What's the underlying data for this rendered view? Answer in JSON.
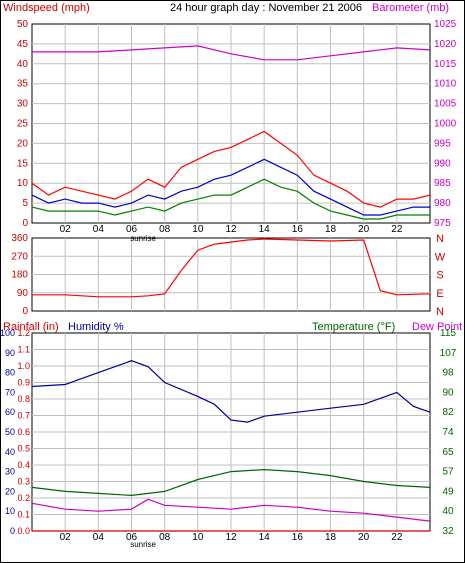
{
  "colors": {
    "wind": "#ff0000",
    "gust": "#ff0000",
    "avg": "#0000cc",
    "green": "#008000",
    "baro": "#cc00cc",
    "dir": "#ff0000",
    "hum": "#000099",
    "temp": "#006600",
    "dew": "#cc00cc",
    "rain": "#cc0000",
    "grid": "#c0c0c0"
  },
  "header": {
    "windspeed_label": "Windspeed (mph)",
    "title": "24 hour graph day : November 21 2006",
    "barometer_label": "Barometer (mb)"
  },
  "bottom_header": {
    "rainfall_label": "Rainfall (in)",
    "humidity_label": "Humidity %",
    "temperature_label": "Temperature (°F)",
    "dewpoint_label": "Dew Point"
  },
  "x_labels": [
    "02",
    "04",
    "06",
    "08",
    "10",
    "12",
    "14",
    "16",
    "18",
    "20",
    "22"
  ],
  "sunrise_label": "sunrise",
  "chart_data": [
    {
      "type": "line",
      "id": "wind",
      "ylim": [
        0,
        50
      ],
      "y_ticks": [
        0,
        5,
        10,
        15,
        20,
        25,
        30,
        35,
        40,
        45,
        50
      ],
      "y2lim": [
        975,
        1025
      ],
      "y2_ticks": [
        975,
        980,
        985,
        990,
        995,
        1000,
        1005,
        1010,
        1015,
        1020,
        1025
      ],
      "series": [
        {
          "key": "gust",
          "values": [
            [
              0,
              10
            ],
            [
              1,
              7
            ],
            [
              2,
              9
            ],
            [
              3,
              8
            ],
            [
              4,
              7
            ],
            [
              5,
              6
            ],
            [
              6,
              8
            ],
            [
              7,
              11
            ],
            [
              8,
              9
            ],
            [
              9,
              14
            ],
            [
              10,
              16
            ],
            [
              11,
              18
            ],
            [
              12,
              19
            ],
            [
              13,
              21
            ],
            [
              14,
              23
            ],
            [
              15,
              20
            ],
            [
              16,
              17
            ],
            [
              17,
              12
            ],
            [
              18,
              10
            ],
            [
              19,
              8
            ],
            [
              20,
              5
            ],
            [
              21,
              4
            ],
            [
              22,
              6
            ],
            [
              23,
              6
            ],
            [
              24,
              7
            ]
          ]
        },
        {
          "key": "avg",
          "values": [
            [
              0,
              7
            ],
            [
              1,
              5
            ],
            [
              2,
              6
            ],
            [
              3,
              5
            ],
            [
              4,
              5
            ],
            [
              5,
              4
            ],
            [
              6,
              5
            ],
            [
              7,
              7
            ],
            [
              8,
              6
            ],
            [
              9,
              8
            ],
            [
              10,
              9
            ],
            [
              11,
              11
            ],
            [
              12,
              12
            ],
            [
              13,
              14
            ],
            [
              14,
              16
            ],
            [
              15,
              14
            ],
            [
              16,
              12
            ],
            [
              17,
              8
            ],
            [
              18,
              6
            ],
            [
              19,
              4
            ],
            [
              20,
              2
            ],
            [
              21,
              2
            ],
            [
              22,
              3
            ],
            [
              23,
              4
            ],
            [
              24,
              4
            ]
          ]
        },
        {
          "key": "green",
          "values": [
            [
              0,
              4
            ],
            [
              1,
              3
            ],
            [
              2,
              3
            ],
            [
              3,
              3
            ],
            [
              4,
              3
            ],
            [
              5,
              2
            ],
            [
              6,
              3
            ],
            [
              7,
              4
            ],
            [
              8,
              3
            ],
            [
              9,
              5
            ],
            [
              10,
              6
            ],
            [
              11,
              7
            ],
            [
              12,
              7
            ],
            [
              13,
              9
            ],
            [
              14,
              11
            ],
            [
              15,
              9
            ],
            [
              16,
              8
            ],
            [
              17,
              5
            ],
            [
              18,
              3
            ],
            [
              19,
              2
            ],
            [
              20,
              1
            ],
            [
              21,
              1
            ],
            [
              22,
              2
            ],
            [
              23,
              2
            ],
            [
              24,
              2
            ]
          ]
        },
        {
          "key": "baro",
          "axis": "y2",
          "values": [
            [
              0,
              1018
            ],
            [
              2,
              1018
            ],
            [
              4,
              1018
            ],
            [
              6,
              1018.5
            ],
            [
              8,
              1019
            ],
            [
              10,
              1019.5
            ],
            [
              12,
              1017.5
            ],
            [
              14,
              1016
            ],
            [
              16,
              1016
            ],
            [
              18,
              1017
            ],
            [
              20,
              1018
            ],
            [
              22,
              1019
            ],
            [
              24,
              1018.5
            ]
          ]
        }
      ]
    },
    {
      "type": "line",
      "id": "direction",
      "ylim": [
        0,
        360
      ],
      "y_ticks": [
        0,
        90,
        180,
        270,
        360
      ],
      "y2_labels": [
        "N",
        "W",
        "S",
        "E",
        "N"
      ],
      "series": [
        {
          "key": "dir",
          "values": [
            [
              0,
              80
            ],
            [
              2,
              80
            ],
            [
              4,
              70
            ],
            [
              6,
              70
            ],
            [
              7,
              75
            ],
            [
              8,
              85
            ],
            [
              9,
              200
            ],
            [
              10,
              300
            ],
            [
              11,
              330
            ],
            [
              12,
              340
            ],
            [
              13,
              350
            ],
            [
              14,
              355
            ],
            [
              16,
              350
            ],
            [
              18,
              345
            ],
            [
              20,
              350
            ],
            [
              21,
              100
            ],
            [
              22,
              80
            ],
            [
              24,
              85
            ]
          ]
        }
      ]
    },
    {
      "type": "line",
      "id": "climate",
      "ylim": [
        0,
        1.2
      ],
      "y_ticks": [
        0.0,
        0.1,
        0.2,
        0.3,
        0.4,
        0.5,
        0.6,
        0.7,
        0.8,
        0.9,
        1.0,
        1.1,
        1.2
      ],
      "y_hum_ticks": [
        0,
        10,
        20,
        30,
        40,
        50,
        60,
        70,
        80,
        90,
        100
      ],
      "y2_ticks": [
        32,
        40,
        49,
        57,
        65,
        74,
        82,
        90,
        98,
        107,
        115
      ],
      "series": [
        {
          "key": "hum",
          "values": [
            [
              0,
              73
            ],
            [
              2,
              74
            ],
            [
              4,
              80
            ],
            [
              6,
              86
            ],
            [
              7,
              83
            ],
            [
              8,
              75
            ],
            [
              10,
              68
            ],
            [
              11,
              64
            ],
            [
              12,
              56
            ],
            [
              13,
              55
            ],
            [
              14,
              58
            ],
            [
              16,
              60
            ],
            [
              18,
              62
            ],
            [
              20,
              64
            ],
            [
              22,
              70
            ],
            [
              23,
              63
            ],
            [
              24,
              60
            ]
          ]
        },
        {
          "key": "temp",
          "values": [
            [
              0,
              22
            ],
            [
              2,
              20
            ],
            [
              4,
              19
            ],
            [
              6,
              18
            ],
            [
              8,
              20
            ],
            [
              10,
              26
            ],
            [
              12,
              30
            ],
            [
              14,
              31
            ],
            [
              16,
              30
            ],
            [
              18,
              28
            ],
            [
              20,
              25
            ],
            [
              22,
              23
            ],
            [
              24,
              22
            ]
          ]
        },
        {
          "key": "dew",
          "values": [
            [
              0,
              14
            ],
            [
              2,
              11
            ],
            [
              4,
              10
            ],
            [
              6,
              11
            ],
            [
              7,
              16
            ],
            [
              8,
              13
            ],
            [
              10,
              12
            ],
            [
              12,
              11
            ],
            [
              14,
              13
            ],
            [
              16,
              12
            ],
            [
              18,
              10
            ],
            [
              20,
              9
            ],
            [
              22,
              7
            ],
            [
              24,
              5
            ]
          ]
        },
        {
          "key": "rain",
          "values": [
            [
              0,
              0
            ],
            [
              24,
              0
            ]
          ]
        }
      ]
    }
  ]
}
